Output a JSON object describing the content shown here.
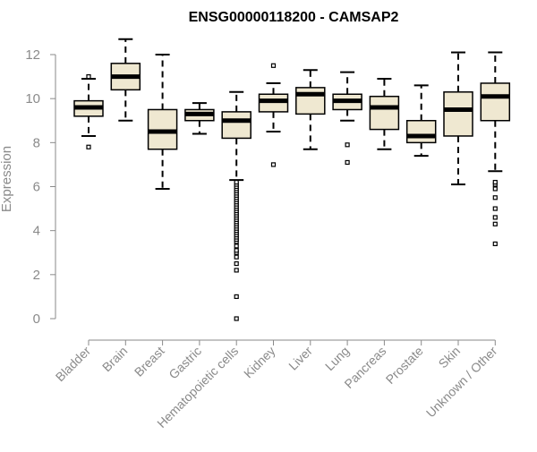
{
  "chart_data": {
    "type": "boxplot",
    "title": "ENSG00000118200 - CAMSAP2",
    "xlabel": "",
    "ylabel": "Expression",
    "ylim": [
      0,
      12
    ],
    "yticks": [
      "0",
      "2",
      "4",
      "6",
      "8",
      "10",
      "12"
    ],
    "ytick_values": [
      0,
      2,
      4,
      6,
      8,
      10,
      12
    ],
    "categories": [
      "Bladder",
      "Brain",
      "Breast",
      "Gastric",
      "Hematopoietic cells",
      "Kidney",
      "Liver",
      "Lung",
      "Pancreas",
      "Prostate",
      "Skin",
      "Unknown / Other"
    ],
    "boxes": [
      {
        "name": "Bladder",
        "whisker_low": 8.3,
        "q1": 9.2,
        "median": 9.6,
        "q3": 9.9,
        "whisker_high": 10.9,
        "outliers": [
          7.8,
          11.0
        ]
      },
      {
        "name": "Brain",
        "whisker_low": 9.0,
        "q1": 10.4,
        "median": 11.0,
        "q3": 11.6,
        "whisker_high": 12.7,
        "outliers": []
      },
      {
        "name": "Breast",
        "whisker_low": 5.9,
        "q1": 7.7,
        "median": 8.5,
        "q3": 9.5,
        "whisker_high": 12.0,
        "outliers": []
      },
      {
        "name": "Gastric",
        "whisker_low": 8.4,
        "q1": 9.0,
        "median": 9.3,
        "q3": 9.5,
        "whisker_high": 9.8,
        "outliers": []
      },
      {
        "name": "Hematopoietic cells",
        "whisker_low": 6.3,
        "q1": 8.2,
        "median": 9.0,
        "q3": 9.4,
        "whisker_high": 10.3,
        "outliers": [
          0.0,
          1.0,
          2.2,
          2.5,
          2.8,
          3.0,
          3.1,
          3.3,
          3.5,
          3.6,
          3.7,
          3.8,
          3.9,
          4.0,
          4.1,
          4.2,
          4.3,
          4.4,
          4.5,
          4.6,
          4.7,
          4.8,
          4.9,
          5.0,
          5.1,
          5.2,
          5.3,
          5.4,
          5.5,
          5.6,
          5.7,
          5.8,
          5.9,
          6.0,
          6.1,
          6.2
        ]
      },
      {
        "name": "Kidney",
        "whisker_low": 8.5,
        "q1": 9.4,
        "median": 9.9,
        "q3": 10.2,
        "whisker_high": 10.7,
        "outliers": [
          7.0,
          11.5
        ]
      },
      {
        "name": "Liver",
        "whisker_low": 7.7,
        "q1": 9.3,
        "median": 10.2,
        "q3": 10.5,
        "whisker_high": 11.3,
        "outliers": []
      },
      {
        "name": "Lung",
        "whisker_low": 9.0,
        "q1": 9.5,
        "median": 9.9,
        "q3": 10.2,
        "whisker_high": 11.2,
        "outliers": [
          7.1,
          7.9
        ]
      },
      {
        "name": "Pancreas",
        "whisker_low": 7.7,
        "q1": 8.6,
        "median": 9.6,
        "q3": 10.1,
        "whisker_high": 10.9,
        "outliers": []
      },
      {
        "name": "Prostate",
        "whisker_low": 7.4,
        "q1": 8.0,
        "median": 8.3,
        "q3": 9.0,
        "whisker_high": 10.6,
        "outliers": []
      },
      {
        "name": "Skin",
        "whisker_low": 6.1,
        "q1": 8.3,
        "median": 9.5,
        "q3": 10.3,
        "whisker_high": 12.1,
        "outliers": []
      },
      {
        "name": "Unknown / Other",
        "whisker_low": 6.7,
        "q1": 9.0,
        "median": 10.1,
        "q3": 10.7,
        "whisker_high": 12.1,
        "outliers": [
          3.4,
          4.3,
          4.6,
          5.0,
          5.5,
          5.9,
          6.1,
          6.2
        ]
      }
    ],
    "colors": {
      "box_fill": "#efe8d1",
      "box_stroke": "#000000",
      "median": "#000000",
      "axis": "#8a8a8a",
      "text": "#8a8a8a",
      "title": "#000000"
    },
    "grid": false
  }
}
